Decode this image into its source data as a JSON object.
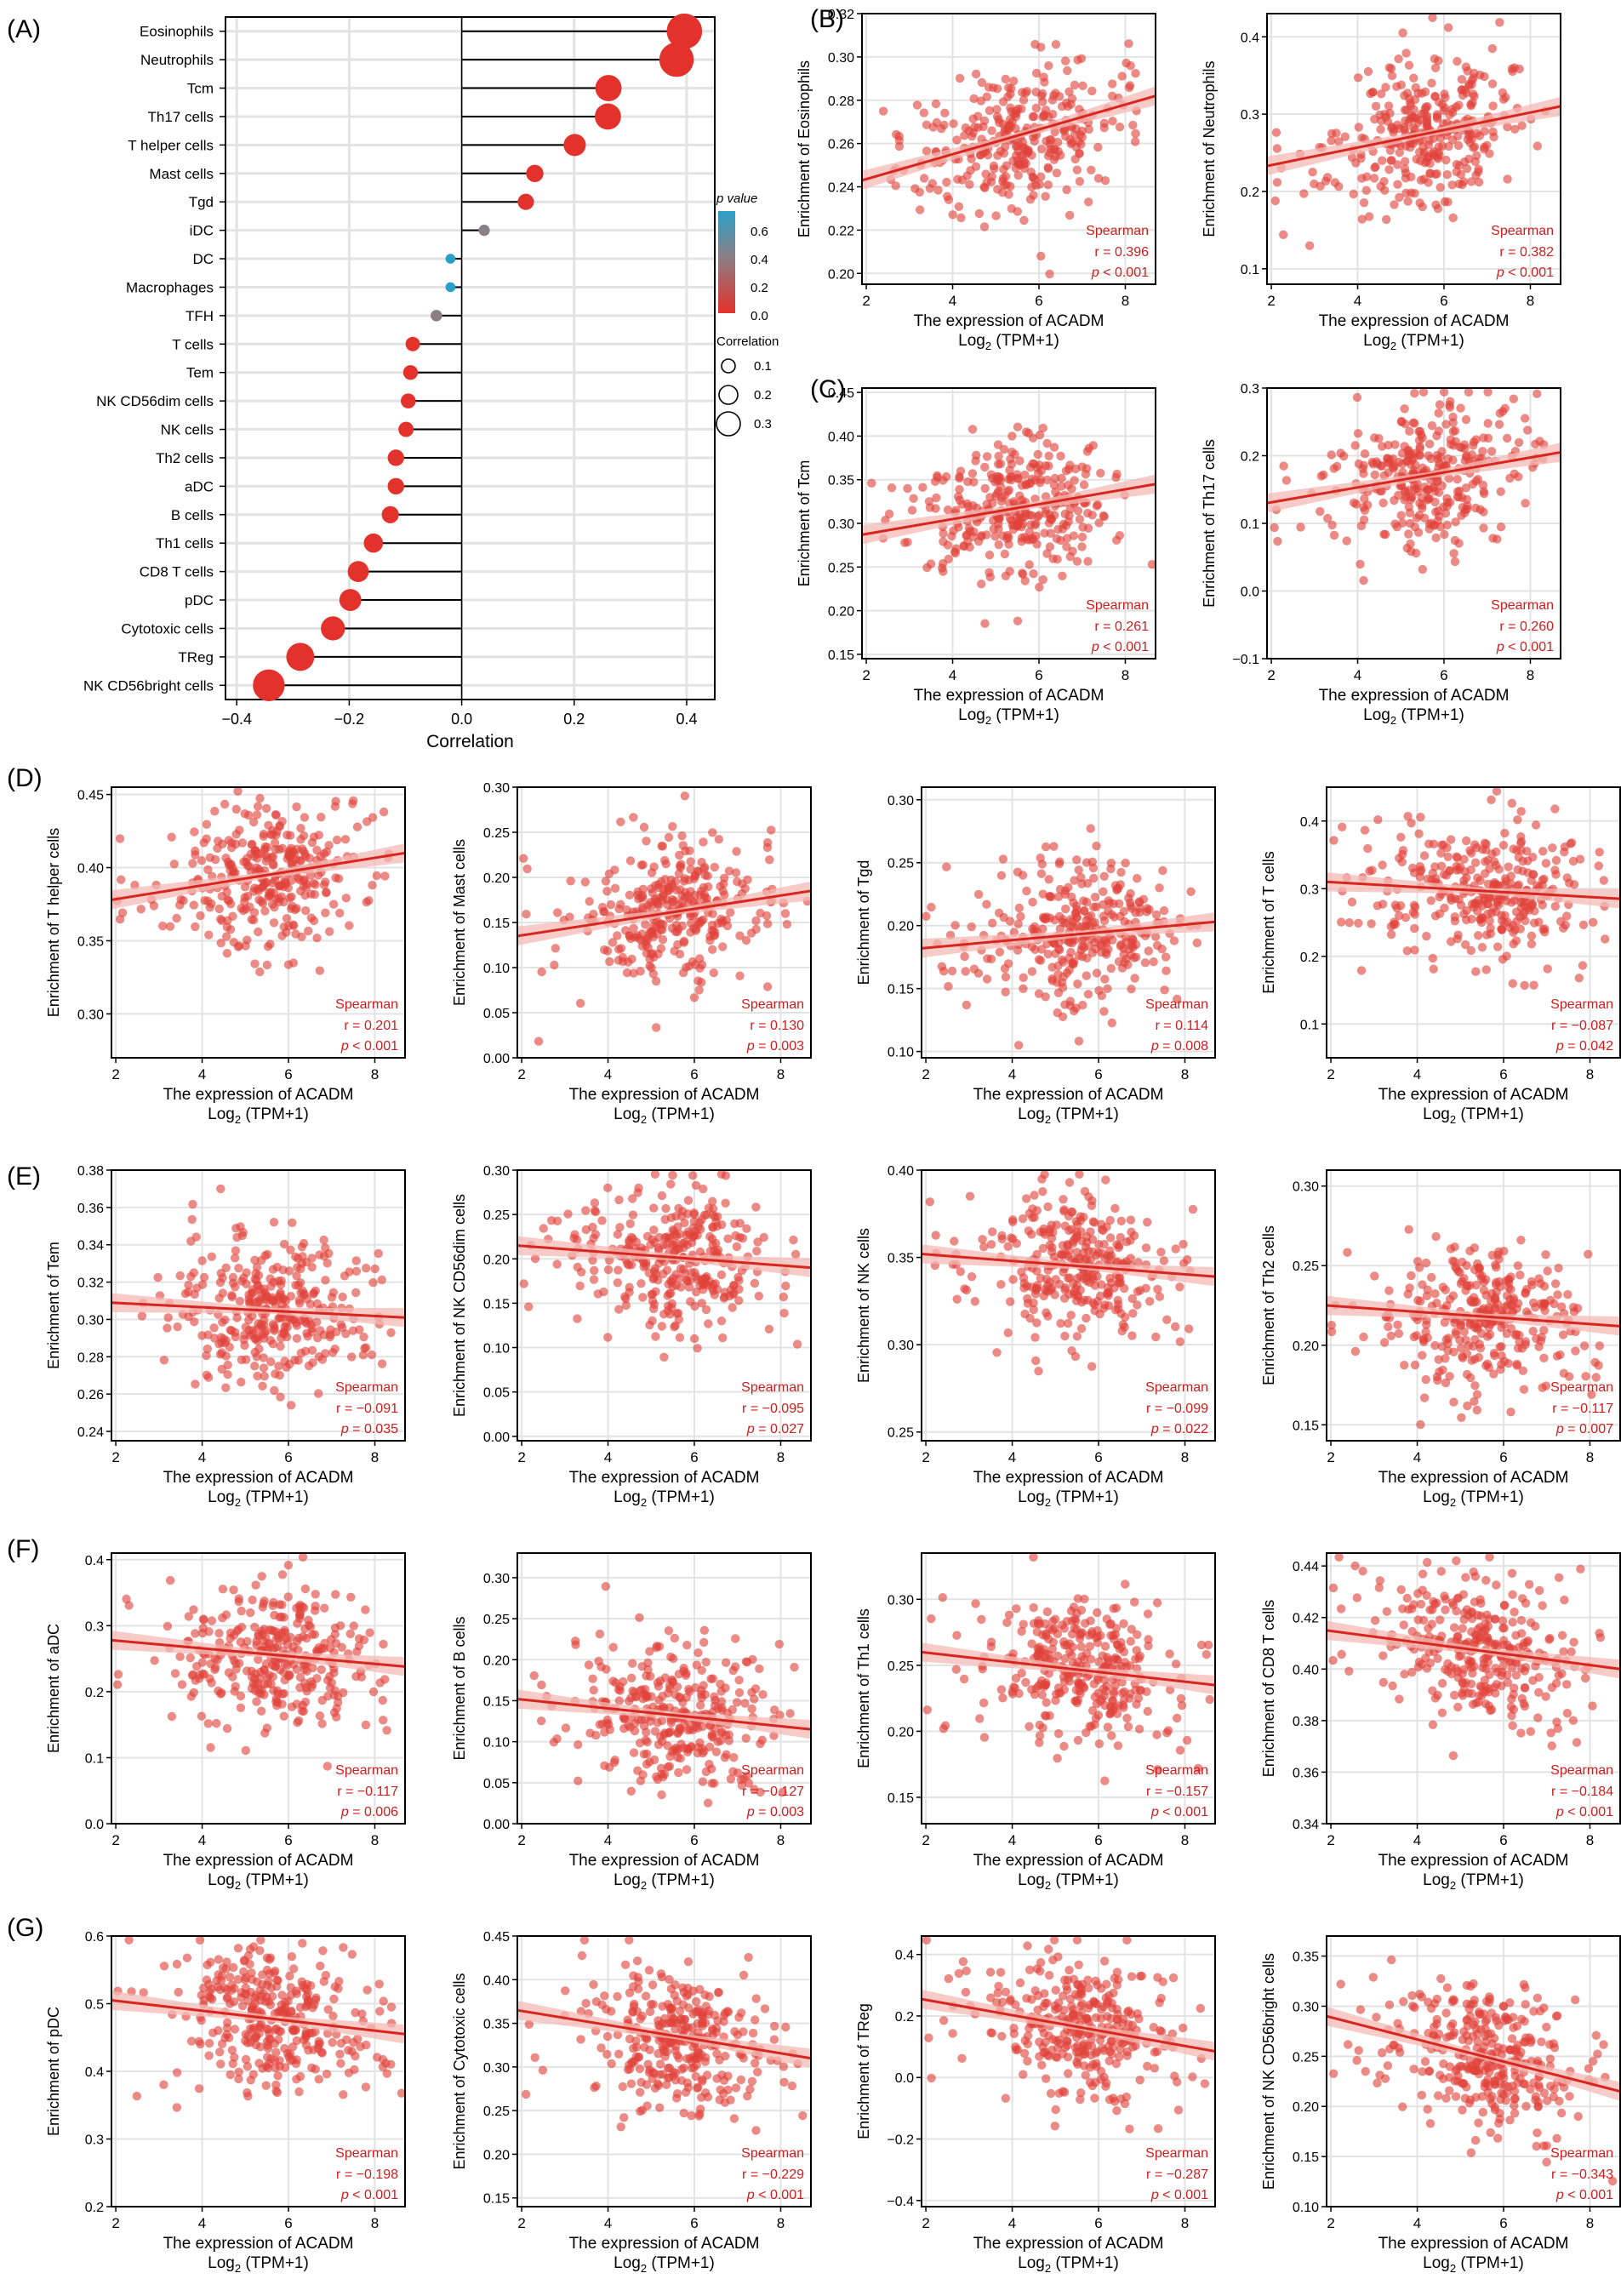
{
  "colors": {
    "red": "#d7261e",
    "dot": "#e3322b",
    "scatter": "#e0423a",
    "band": "#f3b9b5",
    "grid": "#e3e3e3",
    "pblue": "#2a9fc7",
    "pmid": "#8b7f85",
    "spearman": "#d01c1c"
  },
  "panel_letters": [
    "(A)",
    "(B)",
    "(C)",
    "(D)",
    "(E)",
    "(F)",
    "(G)"
  ],
  "chart_data": [
    {
      "id": "A",
      "type": "lollipop",
      "xlabel": "Correlation",
      "xlim": [
        -0.42,
        0.45
      ],
      "xticks": [
        -0.4,
        -0.2,
        0.0,
        0.2,
        0.4
      ],
      "xtick_labels": [
        "−0.4",
        "−0.2",
        "0.0",
        "0.2",
        "0.4"
      ],
      "legend_p_title": "p value",
      "legend_p_ticks": [
        "0.6",
        "0.4",
        "0.2",
        "0.0"
      ],
      "legend_size_title": "Correlation",
      "legend_size_items": [
        "0.1",
        "0.2",
        "0.3"
      ],
      "cells": [
        {
          "name": "Eosinophils",
          "r": 0.396,
          "p": 0.001
        },
        {
          "name": "Neutrophils",
          "r": 0.382,
          "p": 0.001
        },
        {
          "name": "Tcm",
          "r": 0.261,
          "p": 0.001
        },
        {
          "name": "Th17 cells",
          "r": 0.26,
          "p": 0.001
        },
        {
          "name": "T helper cells",
          "r": 0.201,
          "p": 0.001
        },
        {
          "name": "Mast cells",
          "r": 0.13,
          "p": 0.003
        },
        {
          "name": "Tgd",
          "r": 0.114,
          "p": 0.008
        },
        {
          "name": "iDC",
          "r": 0.04,
          "p": 0.35
        },
        {
          "name": "DC",
          "r": -0.02,
          "p": 0.7
        },
        {
          "name": "Macrophages",
          "r": -0.02,
          "p": 0.68
        },
        {
          "name": "TFH",
          "r": -0.045,
          "p": 0.3
        },
        {
          "name": "T cells",
          "r": -0.087,
          "p": 0.042
        },
        {
          "name": "Tem",
          "r": -0.091,
          "p": 0.035
        },
        {
          "name": "NK CD56dim cells",
          "r": -0.095,
          "p": 0.027
        },
        {
          "name": "NK cells",
          "r": -0.099,
          "p": 0.022
        },
        {
          "name": "Th2 cells",
          "r": -0.117,
          "p": 0.007
        },
        {
          "name": "aDC",
          "r": -0.117,
          "p": 0.006
        },
        {
          "name": "B cells",
          "r": -0.127,
          "p": 0.003
        },
        {
          "name": "Th1 cells",
          "r": -0.157,
          "p": 0.001
        },
        {
          "name": "CD8 T cells",
          "r": -0.184,
          "p": 0.001
        },
        {
          "name": "pDC",
          "r": -0.198,
          "p": 0.001
        },
        {
          "name": "Cytotoxic cells",
          "r": -0.229,
          "p": 0.001
        },
        {
          "name": "TReg",
          "r": -0.287,
          "p": 0.001
        },
        {
          "name": "NK CD56bright cells",
          "r": -0.343,
          "p": 0.001
        }
      ]
    },
    {
      "id": "B1",
      "type": "scatter",
      "cell": "Eosinophils",
      "ylabel": "Enrichment of Eosinophils",
      "xlabel": "The expression of ACADM",
      "xlabel2": "Log",
      "xlabel2_sub": "2",
      "xlabel2_tail": " (TPM+1)",
      "xlim": [
        1.9,
        8.7
      ],
      "xticks": [
        2,
        4,
        6,
        8
      ],
      "ylim": [
        0.195,
        0.32
      ],
      "yticks": [
        "0.20",
        "0.22",
        "0.24",
        "0.26",
        "0.28",
        "0.30",
        "0.32"
      ],
      "fit": [
        [
          1.9,
          0.243
        ],
        [
          8.7,
          0.282
        ]
      ],
      "stat_title": "Spearman",
      "r": "r = 0.396",
      "p": "p < 0.001"
    },
    {
      "id": "B2",
      "type": "scatter",
      "cell": "Neutrophils",
      "ylabel": "Enrichment of Neutrophils",
      "xlabel": "The expression of ACADM",
      "xlabel2": "Log",
      "xlabel2_sub": "2",
      "xlabel2_tail": " (TPM+1)",
      "xlim": [
        1.9,
        8.7
      ],
      "xticks": [
        2,
        4,
        6,
        8
      ],
      "ylim": [
        0.08,
        0.43
      ],
      "yticks": [
        "0.1",
        "0.2",
        "0.3",
        "0.4"
      ],
      "fit": [
        [
          1.9,
          0.233
        ],
        [
          8.7,
          0.31
        ]
      ],
      "stat_title": "Spearman",
      "r": "r = 0.382",
      "p": "p < 0.001"
    },
    {
      "id": "C1",
      "type": "scatter",
      "cell": "Tcm",
      "ylabel": "Enrichment of Tcm",
      "xlabel": "The expression of ACADM",
      "xlabel2": "Log",
      "xlabel2_sub": "2",
      "xlabel2_tail": " (TPM+1)",
      "xlim": [
        1.9,
        8.7
      ],
      "xticks": [
        2,
        4,
        6,
        8
      ],
      "ylim": [
        0.145,
        0.455
      ],
      "yticks": [
        "0.15",
        "0.20",
        "0.25",
        "0.30",
        "0.35",
        "0.40",
        "0.45"
      ],
      "fit": [
        [
          1.9,
          0.287
        ],
        [
          8.7,
          0.345
        ]
      ],
      "stat_title": "Spearman",
      "r": "r = 0.261",
      "p": "p < 0.001"
    },
    {
      "id": "C2",
      "type": "scatter",
      "cell": "Th17 cells",
      "ylabel": "Enrichment of Th17 cells",
      "xlabel": "The expression of ACADM",
      "xlabel2": "Log",
      "xlabel2_sub": "2",
      "xlabel2_tail": " (TPM+1)",
      "xlim": [
        1.9,
        8.7
      ],
      "xticks": [
        2,
        4,
        6,
        8
      ],
      "ylim": [
        -0.1,
        0.3
      ],
      "yticks": [
        "−0.1",
        "0.0",
        "0.1",
        "0.2",
        "0.3"
      ],
      "fit": [
        [
          1.9,
          0.13
        ],
        [
          8.7,
          0.205
        ]
      ],
      "stat_title": "Spearman",
      "r": "r = 0.260",
      "p": "p < 0.001"
    },
    {
      "id": "D1",
      "type": "scatter",
      "cell": "T helper cells",
      "ylabel": "Enrichment of T helper cells",
      "xlabel": "The expression of ACADM",
      "xlabel2": "Log",
      "xlabel2_sub": "2",
      "xlabel2_tail": " (TPM+1)",
      "xlim": [
        1.9,
        8.7
      ],
      "xticks": [
        2,
        4,
        6,
        8
      ],
      "ylim": [
        0.27,
        0.455
      ],
      "yticks": [
        "0.30",
        "0.35",
        "0.40",
        "0.45"
      ],
      "fit": [
        [
          1.9,
          0.378
        ],
        [
          8.7,
          0.41
        ]
      ],
      "stat_title": "Spearman",
      "r": "r = 0.201",
      "p": "p < 0.001"
    },
    {
      "id": "D2",
      "type": "scatter",
      "cell": "Mast cells",
      "ylabel": "Enrichment of Mast cells",
      "xlabel": "The expression of ACADM",
      "xlabel2": "Log",
      "xlabel2_sub": "2",
      "xlabel2_tail": " (TPM+1)",
      "xlim": [
        1.9,
        8.7
      ],
      "xticks": [
        2,
        4,
        6,
        8
      ],
      "ylim": [
        0.0,
        0.3
      ],
      "yticks": [
        "0.00",
        "0.05",
        "0.10",
        "0.15",
        "0.20",
        "0.25",
        "0.30"
      ],
      "fit": [
        [
          1.9,
          0.135
        ],
        [
          8.7,
          0.185
        ]
      ],
      "stat_title": "Spearman",
      "r": "r = 0.130",
      "p": "p = 0.003"
    },
    {
      "id": "D3",
      "type": "scatter",
      "cell": "Tgd",
      "ylabel": "Enrichment of Tgd",
      "xlabel": "The expression of ACADM",
      "xlabel2": "Log",
      "xlabel2_sub": "2",
      "xlabel2_tail": " (TPM+1)",
      "xlim": [
        1.9,
        8.7
      ],
      "xticks": [
        2,
        4,
        6,
        8
      ],
      "ylim": [
        0.095,
        0.31
      ],
      "yticks": [
        "0.10",
        "0.15",
        "0.20",
        "0.25",
        "0.30"
      ],
      "fit": [
        [
          1.9,
          0.182
        ],
        [
          8.7,
          0.203
        ]
      ],
      "stat_title": "Spearman",
      "r": "r = 0.114",
      "p": "p = 0.008"
    },
    {
      "id": "D4",
      "type": "scatter",
      "cell": "T cells",
      "ylabel": "Enrichment of T cells",
      "xlabel": "The expression of ACADM",
      "xlabel2": "Log",
      "xlabel2_sub": "2",
      "xlabel2_tail": " (TPM+1)",
      "xlim": [
        1.9,
        8.7
      ],
      "xticks": [
        2,
        4,
        6,
        8
      ],
      "ylim": [
        0.05,
        0.45
      ],
      "yticks": [
        "0.1",
        "0.2",
        "0.3",
        "0.4"
      ],
      "fit": [
        [
          1.9,
          0.31
        ],
        [
          8.7,
          0.285
        ]
      ],
      "stat_title": "Spearman",
      "r": "r = −0.087",
      "p": "p = 0.042"
    },
    {
      "id": "E1",
      "type": "scatter",
      "cell": "Tem",
      "ylabel": "Enrichment of Tem",
      "xlabel": "The expression of ACADM",
      "xlabel2": "Log",
      "xlabel2_sub": "2",
      "xlabel2_tail": " (TPM+1)",
      "xlim": [
        1.9,
        8.7
      ],
      "xticks": [
        2,
        4,
        6,
        8
      ],
      "ylim": [
        0.235,
        0.38
      ],
      "yticks": [
        "0.24",
        "0.26",
        "0.28",
        "0.30",
        "0.32",
        "0.34",
        "0.36",
        "0.38"
      ],
      "fit": [
        [
          1.9,
          0.309
        ],
        [
          8.7,
          0.301
        ]
      ],
      "stat_title": "Spearman",
      "r": "r = −0.091",
      "p": "p = 0.035"
    },
    {
      "id": "E2",
      "type": "scatter",
      "cell": "NK CD56dim cells",
      "ylabel": "Enrichment of NK CD56dim cells",
      "xlabel": "The expression of ACADM",
      "xlabel2": "Log",
      "xlabel2_sub": "2",
      "xlabel2_tail": " (TPM+1)",
      "xlim": [
        1.9,
        8.7
      ],
      "xticks": [
        2,
        4,
        6,
        8
      ],
      "ylim": [
        -0.005,
        0.3
      ],
      "yticks": [
        "0.00",
        "0.05",
        "0.10",
        "0.15",
        "0.20",
        "0.25",
        "0.30"
      ],
      "fit": [
        [
          1.9,
          0.215
        ],
        [
          8.7,
          0.19
        ]
      ],
      "stat_title": "Spearman",
      "r": "r = −0.095",
      "p": "p = 0.027"
    },
    {
      "id": "E3",
      "type": "scatter",
      "cell": "NK cells",
      "ylabel": "Enrichment of NK cells",
      "xlabel": "The expression of ACADM",
      "xlabel2": "Log",
      "xlabel2_sub": "2",
      "xlabel2_tail": " (TPM+1)",
      "xlim": [
        1.9,
        8.7
      ],
      "xticks": [
        2,
        4,
        6,
        8
      ],
      "ylim": [
        0.245,
        0.4
      ],
      "yticks": [
        "0.25",
        "0.30",
        "0.35",
        "0.40"
      ],
      "fit": [
        [
          1.9,
          0.352
        ],
        [
          8.7,
          0.339
        ]
      ],
      "stat_title": "Spearman",
      "r": "r = −0.099",
      "p": "p = 0.022"
    },
    {
      "id": "E4",
      "type": "scatter",
      "cell": "Th2 cells",
      "ylabel": "Enrichment of Th2 cells",
      "xlabel": "The expression of ACADM",
      "xlabel2": "Log",
      "xlabel2_sub": "2",
      "xlabel2_tail": " (TPM+1)",
      "xlim": [
        1.9,
        8.7
      ],
      "xticks": [
        2,
        4,
        6,
        8
      ],
      "ylim": [
        0.14,
        0.31
      ],
      "yticks": [
        "0.15",
        "0.20",
        "0.25",
        "0.30"
      ],
      "fit": [
        [
          1.9,
          0.225
        ],
        [
          8.7,
          0.212
        ]
      ],
      "stat_title": "Spearman",
      "r": "r = −0.117",
      "p": "p = 0.007"
    },
    {
      "id": "F1",
      "type": "scatter",
      "cell": "aDC",
      "ylabel": "Enrichment of aDC",
      "xlabel": "The expression of ACADM",
      "xlabel2": "Log",
      "xlabel2_sub": "2",
      "xlabel2_tail": " (TPM+1)",
      "xlim": [
        1.9,
        8.7
      ],
      "xticks": [
        2,
        4,
        6,
        8
      ],
      "ylim": [
        0.0,
        0.41
      ],
      "yticks": [
        "0.0",
        "0.1",
        "0.2",
        "0.3",
        "0.4"
      ],
      "fit": [
        [
          1.9,
          0.278
        ],
        [
          8.7,
          0.238
        ]
      ],
      "stat_title": "Spearman",
      "r": "r = −0.117",
      "p": "p = 0.006"
    },
    {
      "id": "F2",
      "type": "scatter",
      "cell": "B cells",
      "ylabel": "Enrichment of B cells",
      "xlabel": "The expression of ACADM",
      "xlabel2": "Log",
      "xlabel2_sub": "2",
      "xlabel2_tail": " (TPM+1)",
      "xlim": [
        1.9,
        8.7
      ],
      "xticks": [
        2,
        4,
        6,
        8
      ],
      "ylim": [
        0.0,
        0.33
      ],
      "yticks": [
        "0.00",
        "0.05",
        "0.10",
        "0.15",
        "0.20",
        "0.25",
        "0.30"
      ],
      "fit": [
        [
          1.9,
          0.152
        ],
        [
          8.7,
          0.115
        ]
      ],
      "stat_title": "Spearman",
      "r": "r = −0.127",
      "p": "p = 0.003"
    },
    {
      "id": "F3",
      "type": "scatter",
      "cell": "Th1 cells",
      "ylabel": "Enrichment of Th1 cells",
      "xlabel": "The expression of ACADM",
      "xlabel2": "Log",
      "xlabel2_sub": "2",
      "xlabel2_tail": " (TPM+1)",
      "xlim": [
        1.9,
        8.7
      ],
      "xticks": [
        2,
        4,
        6,
        8
      ],
      "ylim": [
        0.13,
        0.335
      ],
      "yticks": [
        "0.15",
        "0.20",
        "0.25",
        "0.30"
      ],
      "fit": [
        [
          1.9,
          0.26
        ],
        [
          8.7,
          0.235
        ]
      ],
      "stat_title": "Spearman",
      "r": "r = −0.157",
      "p": "p < 0.001"
    },
    {
      "id": "F4",
      "type": "scatter",
      "cell": "CD8 T cells",
      "ylabel": "Enrichment of CD8 T cells",
      "xlabel": "The expression of ACADM",
      "xlabel2": "Log",
      "xlabel2_sub": "2",
      "xlabel2_tail": " (TPM+1)",
      "xlim": [
        1.9,
        8.7
      ],
      "xticks": [
        2,
        4,
        6,
        8
      ],
      "ylim": [
        0.34,
        0.445
      ],
      "yticks": [
        "0.34",
        "0.36",
        "0.38",
        "0.40",
        "0.42",
        "0.44"
      ],
      "fit": [
        [
          1.9,
          0.415
        ],
        [
          8.7,
          0.4
        ]
      ],
      "stat_title": "Spearman",
      "r": "r = −0.184",
      "p": "p < 0.001"
    },
    {
      "id": "G1",
      "type": "scatter",
      "cell": "pDC",
      "ylabel": "Enrichment of pDC",
      "xlabel": "The expression of ACADM",
      "xlabel2": "Log",
      "xlabel2_sub": "2",
      "xlabel2_tail": " (TPM+1)",
      "xlim": [
        1.9,
        8.7
      ],
      "xticks": [
        2,
        4,
        6,
        8
      ],
      "ylim": [
        0.2,
        0.6
      ],
      "yticks": [
        "0.2",
        "0.3",
        "0.4",
        "0.5",
        "0.6"
      ],
      "fit": [
        [
          1.9,
          0.505
        ],
        [
          8.7,
          0.455
        ]
      ],
      "stat_title": "Spearman",
      "r": "r = −0.198",
      "p": "p < 0.001"
    },
    {
      "id": "G2",
      "type": "scatter",
      "cell": "Cytotoxic cells",
      "ylabel": "Enrichment of Cytotoxic cells",
      "xlabel": "The expression of ACADM",
      "xlabel2": "Log",
      "xlabel2_sub": "2",
      "xlabel2_tail": " (TPM+1)",
      "xlim": [
        1.9,
        8.7
      ],
      "xticks": [
        2,
        4,
        6,
        8
      ],
      "ylim": [
        0.14,
        0.45
      ],
      "yticks": [
        "0.15",
        "0.20",
        "0.25",
        "0.30",
        "0.35",
        "0.40",
        "0.45"
      ],
      "fit": [
        [
          1.9,
          0.365
        ],
        [
          8.7,
          0.31
        ]
      ],
      "stat_title": "Spearman",
      "r": "r = −0.229",
      "p": "p < 0.001"
    },
    {
      "id": "G3",
      "type": "scatter",
      "cell": "TReg",
      "ylabel": "Enrichment of TReg",
      "xlabel": "The expression of ACADM",
      "xlabel2": "Log",
      "xlabel2_sub": "2",
      "xlabel2_tail": " (TPM+1)",
      "xlim": [
        1.9,
        8.7
      ],
      "xticks": [
        2,
        4,
        6,
        8
      ],
      "ylim": [
        -0.42,
        0.46
      ],
      "yticks": [
        "−0.4",
        "−0.2",
        "0.0",
        "0.2",
        "0.4"
      ],
      "fit": [
        [
          1.9,
          0.255
        ],
        [
          8.7,
          0.085
        ]
      ],
      "stat_title": "Spearman",
      "r": "r = −0.287",
      "p": "p < 0.001"
    },
    {
      "id": "G4",
      "type": "scatter",
      "cell": "NK CD56bright cells",
      "ylabel": "Enrichment of NK CD56bright cells",
      "xlabel": "The expression of ACADM",
      "xlabel2": "Log",
      "xlabel2_sub": "2",
      "xlabel2_tail": " (TPM+1)",
      "xlim": [
        1.9,
        8.7
      ],
      "xticks": [
        2,
        4,
        6,
        8
      ],
      "ylim": [
        0.1,
        0.37
      ],
      "yticks": [
        "0.10",
        "0.15",
        "0.20",
        "0.25",
        "0.30",
        "0.35"
      ],
      "fit": [
        [
          1.9,
          0.29
        ],
        [
          8.7,
          0.215
        ]
      ],
      "stat_title": "Spearman",
      "r": "r = −0.343",
      "p": "p < 0.001"
    }
  ]
}
